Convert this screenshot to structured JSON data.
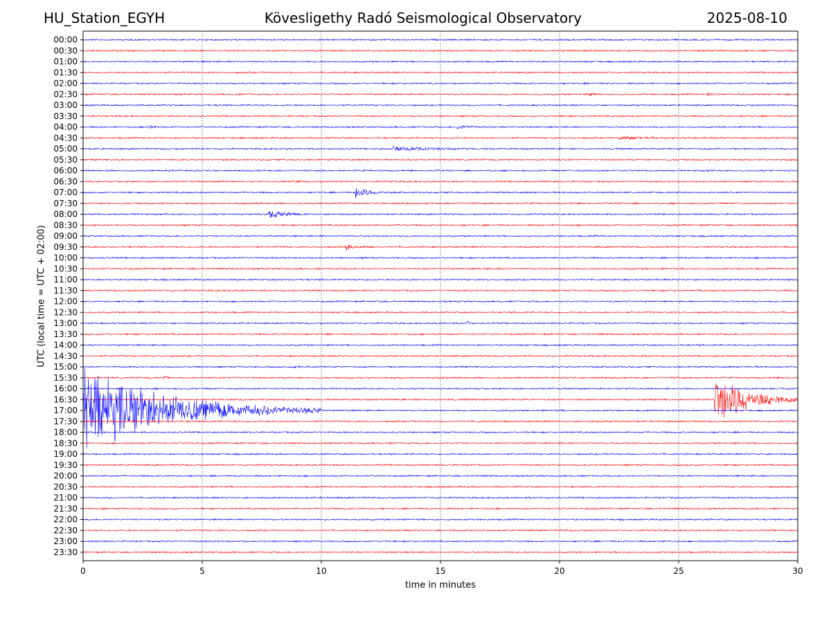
{
  "header": {
    "station": "HU_Station_EGYH",
    "observatory": "Kövesligethy Radó Seismological Observatory",
    "date": "2025-08-10"
  },
  "chart_data": {
    "type": "line",
    "title": "Kövesligethy Radó Seismological Observatory",
    "xlabel": "time in minutes",
    "ylabel": "UTC (local time = UTC + 02:00)",
    "xlim": [
      0,
      30
    ],
    "xticks": [
      0,
      5,
      10,
      15,
      20,
      25,
      30
    ],
    "grid": "vertical dotted at each x tick",
    "colors": {
      "even_row": "#0000ff",
      "odd_row": "#ff0000"
    },
    "rows": [
      "00:00",
      "00:30",
      "01:00",
      "01:30",
      "02:00",
      "02:30",
      "03:00",
      "03:30",
      "04:00",
      "04:30",
      "05:00",
      "05:30",
      "06:00",
      "06:30",
      "07:00",
      "07:30",
      "08:00",
      "08:30",
      "09:00",
      "09:30",
      "10:00",
      "10:30",
      "11:00",
      "11:30",
      "12:00",
      "12:30",
      "13:00",
      "13:30",
      "14:00",
      "14:30",
      "15:00",
      "15:30",
      "16:00",
      "16:30",
      "17:00",
      "17:30",
      "18:00",
      "18:30",
      "19:00",
      "19:30",
      "20:00",
      "20:30",
      "21:00",
      "21:30",
      "22:00",
      "22:30",
      "23:00",
      "23:30"
    ],
    "events": [
      {
        "row": "02:30",
        "start_min": 21.2,
        "duration_min": 0.6,
        "amplitude": 0.25
      },
      {
        "row": "02:30",
        "start_min": 26.2,
        "duration_min": 0.6,
        "amplitude": 0.15
      },
      {
        "row": "04:00",
        "start_min": 2.7,
        "duration_min": 0.4,
        "amplitude": 0.25
      },
      {
        "row": "04:00",
        "start_min": 15.7,
        "duration_min": 1.5,
        "amplitude": 0.25
      },
      {
        "row": "04:30",
        "start_min": 22.5,
        "duration_min": 2.5,
        "amplitude": 0.2
      },
      {
        "row": "05:00",
        "start_min": 13.0,
        "duration_min": 3.5,
        "amplitude": 0.25
      },
      {
        "row": "06:30",
        "start_min": 8.8,
        "duration_min": 0.5,
        "amplitude": 0.2
      },
      {
        "row": "07:00",
        "start_min": 11.4,
        "duration_min": 1.5,
        "amplitude": 0.7
      },
      {
        "row": "08:00",
        "start_min": 7.8,
        "duration_min": 1.7,
        "amplitude": 0.45
      },
      {
        "row": "09:30",
        "start_min": 11.0,
        "duration_min": 1.2,
        "amplitude": 0.35
      },
      {
        "row": "13:00",
        "start_min": 16.1,
        "duration_min": 0.3,
        "amplitude": 0.35
      },
      {
        "row": "15:00",
        "start_min": 8.8,
        "duration_min": 0.4,
        "amplitude": 0.2
      },
      {
        "row": "15:30",
        "start_min": 3.4,
        "duration_min": 0.3,
        "amplitude": 0.2
      },
      {
        "row": "16:30",
        "start_min": 26.5,
        "duration_min": 3.5,
        "amplitude": 3.3
      },
      {
        "row": "17:00",
        "start_min": 0.0,
        "duration_min": 10.0,
        "amplitude": 4.5
      }
    ]
  }
}
